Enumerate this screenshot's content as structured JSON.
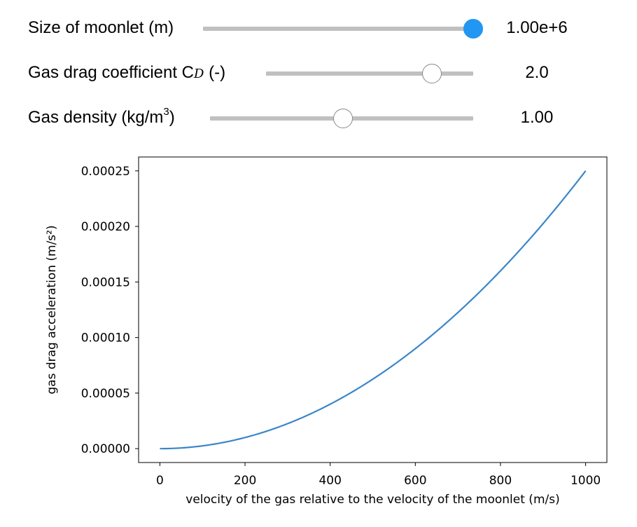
{
  "sliders": [
    {
      "label": "Size of moonlet (m)",
      "value_text": "1.00e+6",
      "fraction": 1.0,
      "focused": true
    },
    {
      "label_prefix": "Gas drag coefficient C",
      "label_subscript": "D",
      "label_suffix": " (-)",
      "value_text": "2.0",
      "fraction": 0.8
    },
    {
      "label_prefix": "Gas density (kg/m",
      "label_superscript": "3",
      "label_suffix": ")",
      "value_text": "1.00",
      "fraction": 0.505
    }
  ],
  "chart_data": {
    "type": "line",
    "xlabel": "velocity of the gas relative to the velocity of the moonlet (m/s)",
    "ylabel": "gas drag acceleration (m/s²)",
    "xlim": [
      -50,
      1050
    ],
    "ylim": [
      -1.25e-05,
      0.0002625
    ],
    "x_ticks": [
      0,
      200,
      400,
      600,
      800,
      1000
    ],
    "y_ticks": [
      0,
      5e-05,
      0.0001,
      0.00015,
      0.0002,
      0.00025
    ],
    "x_tick_labels": [
      "0",
      "200",
      "400",
      "600",
      "800",
      "1000"
    ],
    "y_tick_labels": [
      "0.00000",
      "0.00005",
      "0.00010",
      "0.00015",
      "0.00020",
      "0.00025"
    ],
    "grid": false,
    "series": [
      {
        "color": "#3a86c8",
        "formula_coefficient": 2.5e-10,
        "x": [
          0,
          50,
          100,
          150,
          200,
          250,
          300,
          350,
          400,
          450,
          500,
          550,
          600,
          650,
          700,
          750,
          800,
          850,
          900,
          950,
          1000
        ],
        "y": [
          0,
          6.25e-07,
          2.5e-06,
          5.625e-06,
          1e-05,
          1.5625e-05,
          2.25e-05,
          3.0625e-05,
          4e-05,
          5.0625e-05,
          6.25e-05,
          7.5625e-05,
          9e-05,
          0.000105625,
          0.0001225,
          0.000140625,
          0.00016,
          0.000180625,
          0.0002025,
          0.000225625,
          0.00025
        ]
      }
    ]
  }
}
